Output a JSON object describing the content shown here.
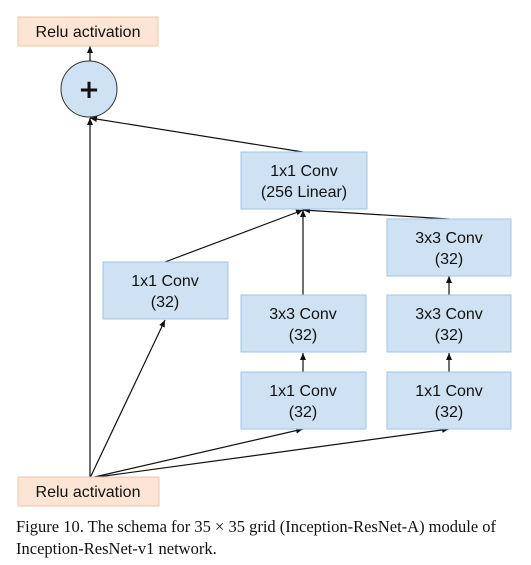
{
  "colors": {
    "relu_fill": "#fce5d4",
    "relu_stroke": "#ecc8a8",
    "conv_fill": "#cfe2f3",
    "conv_stroke": "#9fc5e8",
    "sum_fill": "#cfe2f3",
    "edge": "#111111"
  },
  "nodes": {
    "relu_top": {
      "line1": "Relu activation"
    },
    "sum": {
      "symbol": "+"
    },
    "conv_linear": {
      "line1": "1x1 Conv",
      "line2": "(256 Linear)"
    },
    "b1_conv1": {
      "line1": "1x1 Conv",
      "line2": "(32)"
    },
    "b2_conv3": {
      "line1": "3x3 Conv",
      "line2": "(32)"
    },
    "b2_conv1": {
      "line1": "1x1 Conv",
      "line2": "(32)"
    },
    "b3_conv3b": {
      "line1": "3x3 Conv",
      "line2": "(32)"
    },
    "b3_conv3a": {
      "line1": "3x3 Conv",
      "line2": "(32)"
    },
    "b3_conv1": {
      "line1": "1x1 Conv",
      "line2": "(32)"
    },
    "relu_bottom": {
      "line1": "Relu activation"
    }
  },
  "caption": {
    "text": "Figure 10. The schema for 35 × 35 grid (Inception-ResNet-A) module of Inception-ResNet-v1 network."
  }
}
